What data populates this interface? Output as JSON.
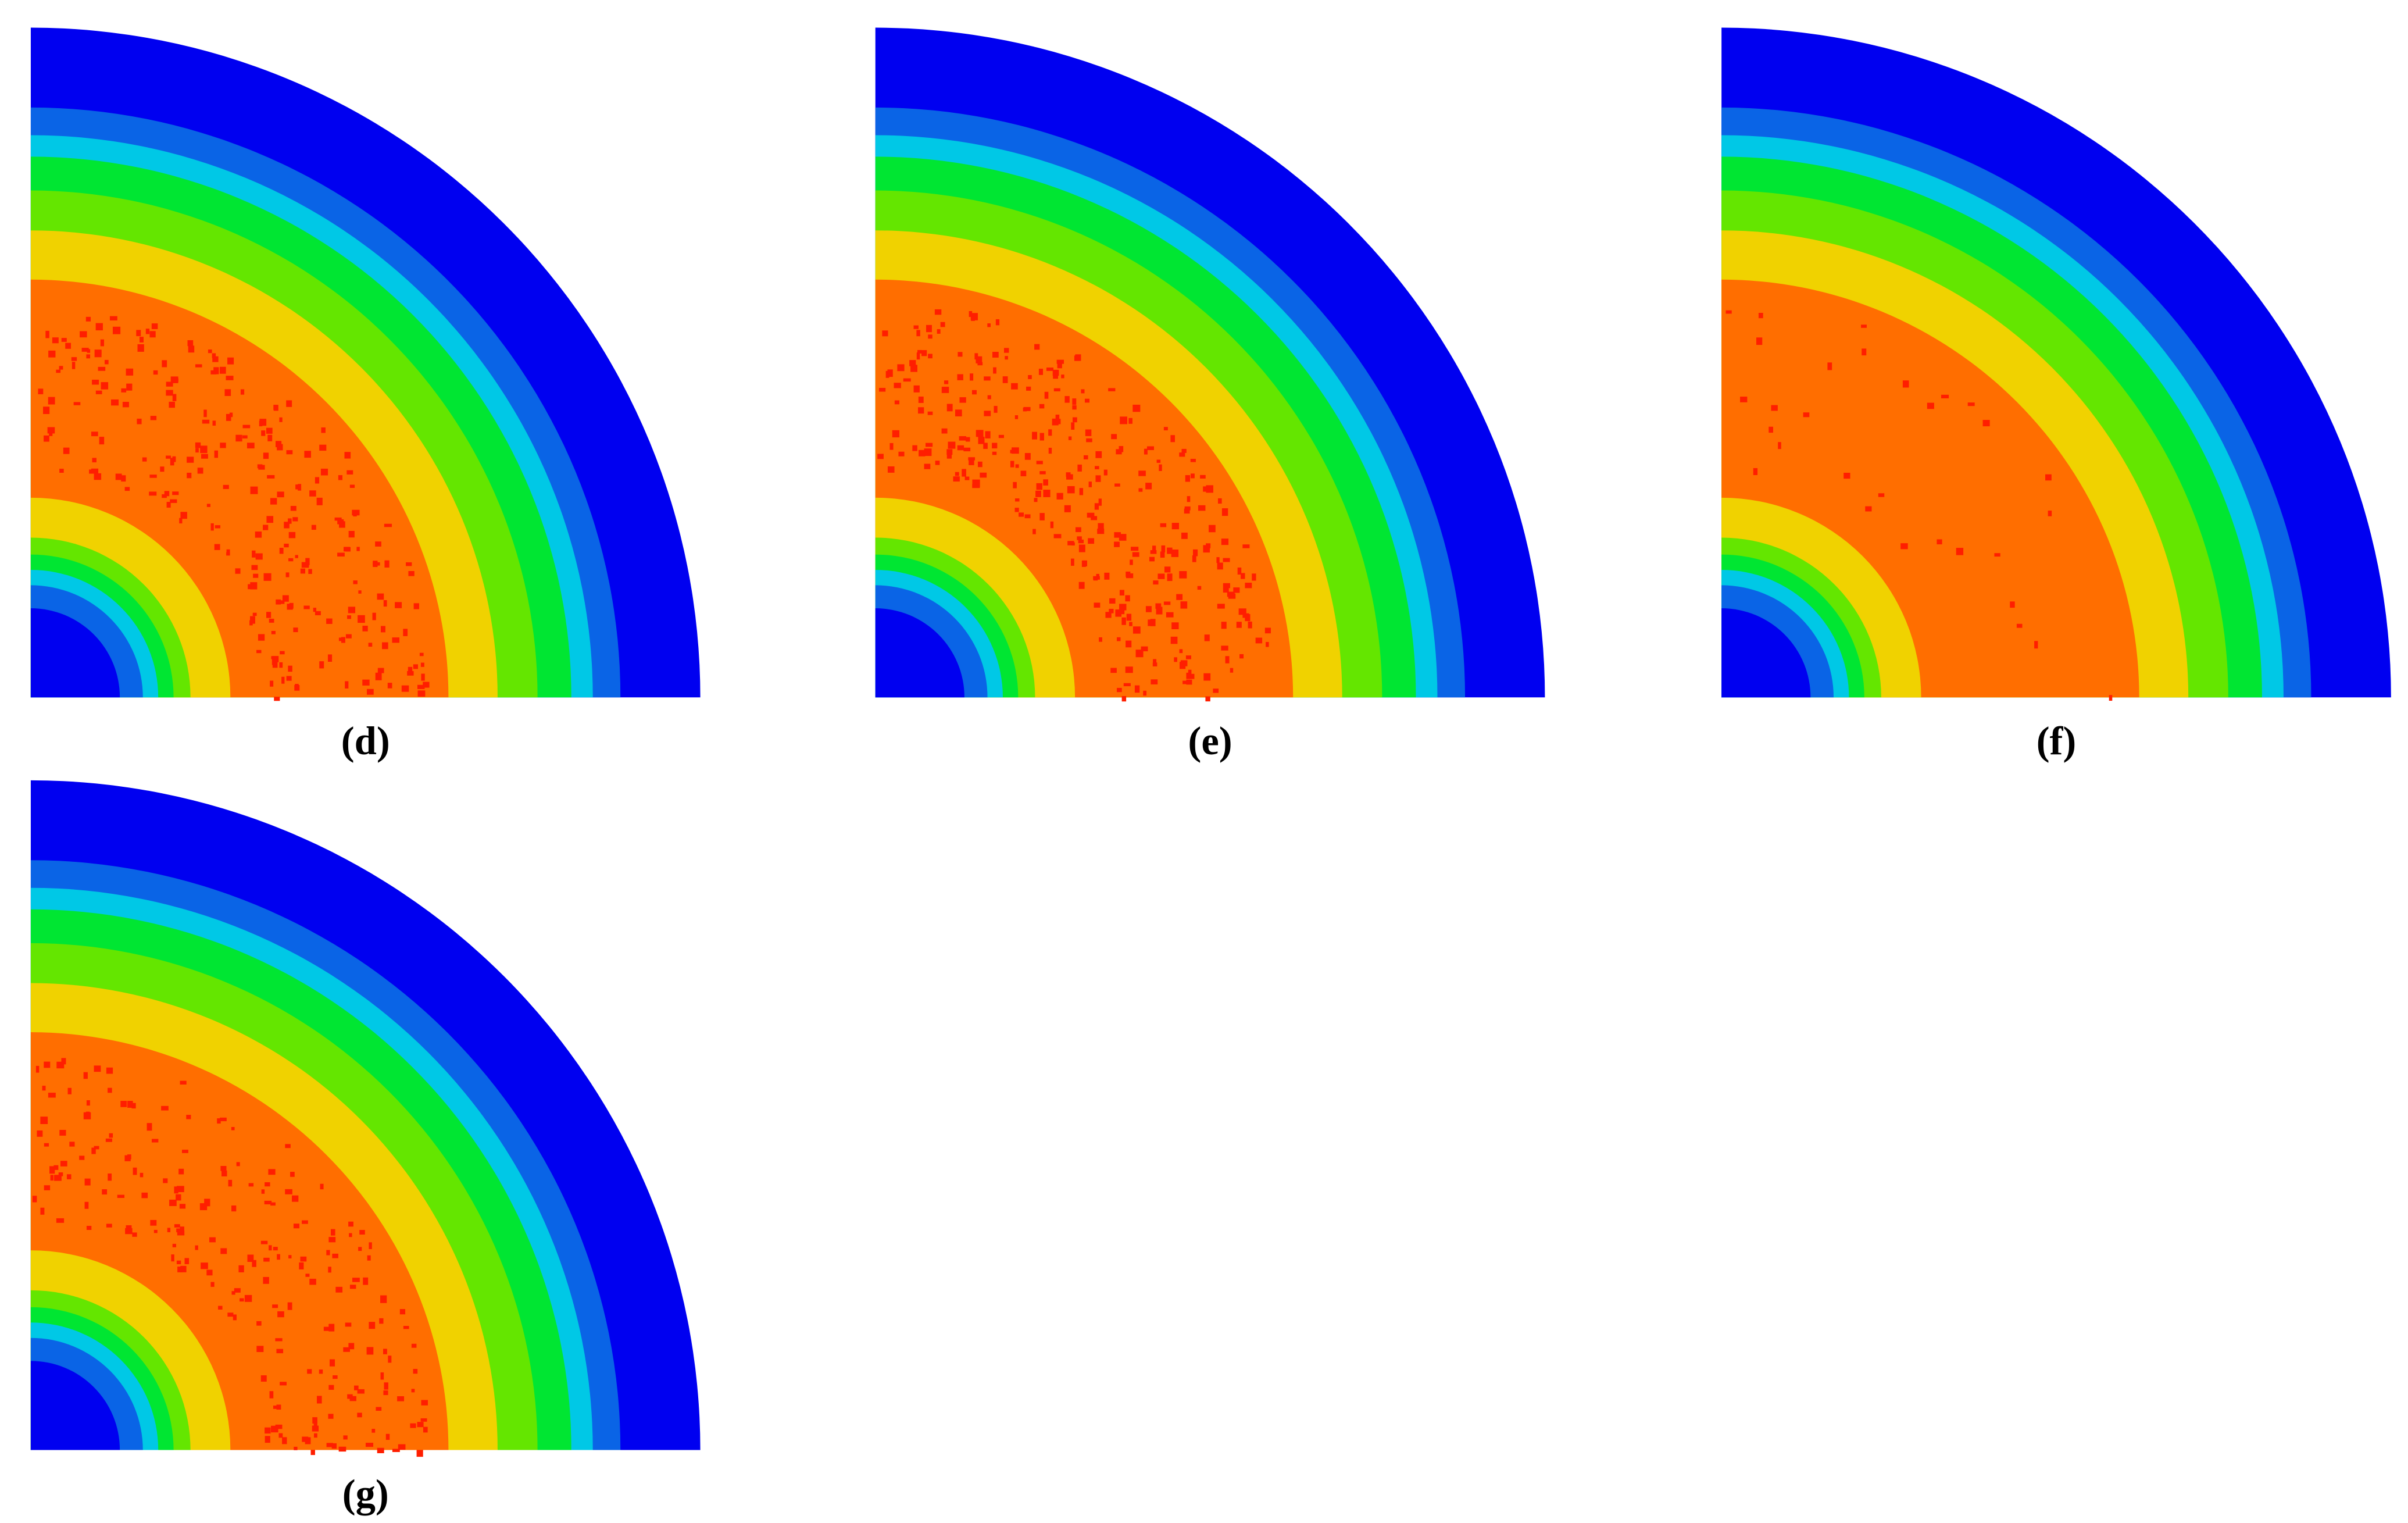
{
  "panels": [
    {
      "label": "(d)"
    },
    {
      "label": "(e)"
    },
    {
      "label": "(f)"
    },
    {
      "label": "(g)"
    }
  ]
}
